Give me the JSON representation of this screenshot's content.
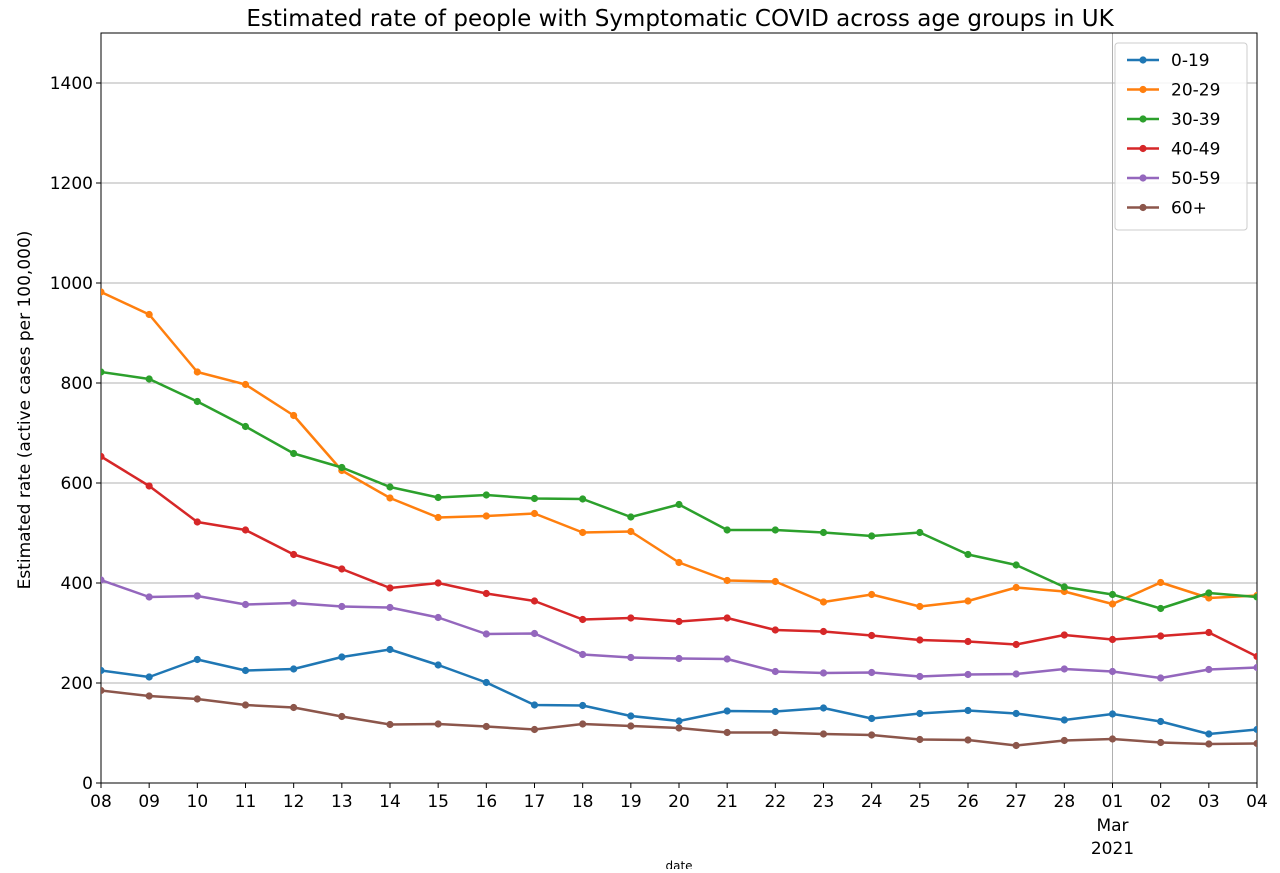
{
  "chart_data": {
    "type": "line",
    "title": "Estimated rate of people with Symptomatic COVID across age groups in UK",
    "xlabel": "date",
    "ylabel": "Estimated rate (active cases per 100,000)",
    "x": [
      "2021-02-08",
      "2021-02-09",
      "2021-02-10",
      "2021-02-11",
      "2021-02-12",
      "2021-02-13",
      "2021-02-14",
      "2021-02-15",
      "2021-02-16",
      "2021-02-17",
      "2021-02-18",
      "2021-02-19",
      "2021-02-20",
      "2021-02-21",
      "2021-02-22",
      "2021-02-23",
      "2021-02-24",
      "2021-02-25",
      "2021-02-26",
      "2021-02-27",
      "2021-02-28",
      "2021-03-01",
      "2021-03-02",
      "2021-03-03",
      "2021-03-04"
    ],
    "x_tick_labels": [
      "08",
      "09",
      "10",
      "11",
      "12",
      "13",
      "14",
      "15",
      "16",
      "17",
      "18",
      "19",
      "20",
      "21",
      "22",
      "23",
      "24",
      "25",
      "26",
      "27",
      "28",
      "01",
      "02",
      "03",
      "04"
    ],
    "x_month_label": "Mar",
    "x_year_label": "2021",
    "xlim": [
      "2021-02-08",
      "2021-03-04"
    ],
    "ylim": [
      0,
      1500
    ],
    "y_ticks": [
      0,
      200,
      400,
      600,
      800,
      1000,
      1200,
      1400
    ],
    "grid": true,
    "legend_position": "upper right",
    "series": [
      {
        "name": "0-19",
        "color": "#1f77b4",
        "values": [
          225,
          212,
          247,
          225,
          228,
          252,
          267,
          236,
          201,
          156,
          155,
          134,
          124,
          144,
          143,
          150,
          129,
          139,
          145,
          139,
          126,
          138,
          123,
          98,
          107
        ]
      },
      {
        "name": "20-29",
        "color": "#ff7f0e",
        "values": [
          982,
          937,
          822,
          797,
          735,
          625,
          570,
          531,
          534,
          539,
          501,
          503,
          441,
          405,
          403,
          362,
          377,
          353,
          364,
          391,
          383,
          358,
          401,
          370,
          375
        ]
      },
      {
        "name": "30-39",
        "color": "#2ca02c",
        "values": [
          822,
          808,
          763,
          713,
          659,
          631,
          592,
          571,
          576,
          569,
          568,
          532,
          557,
          506,
          506,
          501,
          494,
          501,
          457,
          436,
          392,
          377,
          349,
          380,
          372
        ]
      },
      {
        "name": "40-49",
        "color": "#d62728",
        "values": [
          653,
          594,
          522,
          506,
          457,
          428,
          390,
          400,
          379,
          364,
          327,
          330,
          323,
          330,
          306,
          303,
          295,
          286,
          283,
          277,
          296,
          287,
          294,
          301,
          253
        ]
      },
      {
        "name": "50-59",
        "color": "#9467bd",
        "values": [
          406,
          372,
          374,
          357,
          360,
          353,
          351,
          331,
          298,
          299,
          257,
          251,
          249,
          248,
          223,
          220,
          221,
          213,
          217,
          218,
          228,
          223,
          210,
          227,
          231
        ]
      },
      {
        "name": "60+",
        "color": "#8c564b",
        "values": [
          185,
          174,
          168,
          156,
          151,
          133,
          117,
          118,
          113,
          107,
          118,
          114,
          110,
          101,
          101,
          98,
          96,
          87,
          86,
          75,
          85,
          88,
          81,
          78,
          79
        ]
      }
    ]
  }
}
